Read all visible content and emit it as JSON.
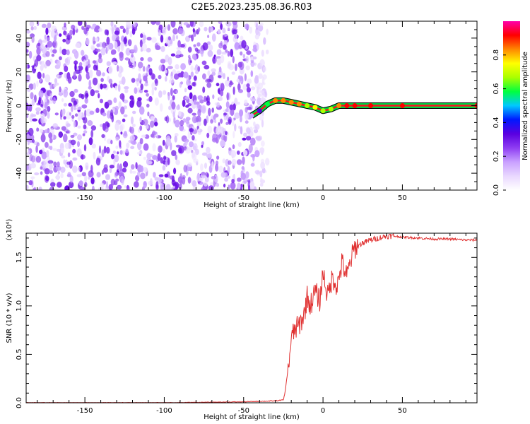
{
  "title": "C2E5.2023.235.08.36.R03",
  "colors": {
    "snr_line": "#e03030",
    "colormap": [
      "#ffffff",
      "#e9d8ff",
      "#c9a0ff",
      "#8e3df2",
      "#5a00e0",
      "#0018ff",
      "#00c8ff",
      "#00ff40",
      "#aaff00",
      "#ffff00",
      "#ff8800",
      "#ff0000",
      "#ff00aa"
    ]
  },
  "chart_data": [
    {
      "type": "heatmap",
      "title": "C2E5.2023.235.08.36.R03",
      "xlabel": "Height of straight line (km)",
      "ylabel": "Frequency (Hz)",
      "xlim": [
        -187,
        97
      ],
      "ylim": [
        -50,
        50
      ],
      "x_ticks": [
        -150,
        -100,
        -50,
        0,
        50
      ],
      "y_ticks": [
        -40,
        -20,
        0,
        20,
        40
      ],
      "colorbar": {
        "label": "Normalized spectral amplitude",
        "range": [
          0,
          1
        ],
        "ticks": [
          "0.0",
          "0.2",
          "0.4",
          "0.6",
          "0.8"
        ]
      },
      "noise_region_x": [
        -187,
        -35
      ],
      "signal_track": {
        "x": [
          -45,
          -40,
          -35,
          -30,
          -25,
          -20,
          -15,
          -10,
          -5,
          0,
          5,
          10,
          15,
          20,
          30,
          50,
          97
        ],
        "frequency": [
          -6,
          -3,
          1,
          3,
          3,
          2,
          1,
          0,
          -1,
          -3,
          -2,
          0,
          0,
          0,
          0,
          0,
          0
        ],
        "amplitude": [
          0.15,
          0.3,
          0.55,
          0.8,
          0.85,
          0.85,
          0.8,
          0.7,
          0.75,
          0.7,
          0.7,
          0.8,
          0.9,
          0.95,
          0.95,
          0.95,
          0.95
        ]
      }
    },
    {
      "type": "line",
      "title": "",
      "xlabel": "Height of straight line (km)",
      "ylabel": "SNR (10 * v/v)",
      "y_multiplier": "(x10⁴)",
      "xlim": [
        -187,
        97
      ],
      "ylim": [
        0,
        1.75
      ],
      "x_ticks": [
        -150,
        -100,
        -50,
        0,
        50
      ],
      "y_ticks": [
        "0.0",
        "0.5",
        "1.0",
        "1.5"
      ],
      "series": [
        {
          "x": [
            -187,
            -150,
            -100,
            -50,
            -30,
            -25,
            -24,
            -22,
            -20,
            -18,
            -15,
            -12,
            -10,
            -8,
            -5,
            -2,
            0,
            3,
            6,
            9,
            12,
            15,
            18,
            20,
            25,
            30,
            35,
            40,
            45,
            50,
            60,
            70,
            80,
            90,
            97
          ],
          "y": [
            0.0,
            0.0,
            0.0,
            0.01,
            0.02,
            0.03,
            0.1,
            0.35,
            0.65,
            0.75,
            0.8,
            0.9,
            1.1,
            1.0,
            1.15,
            1.05,
            1.35,
            1.1,
            1.3,
            1.2,
            1.45,
            1.3,
            1.5,
            1.6,
            1.65,
            1.68,
            1.7,
            1.72,
            1.72,
            1.71,
            1.7,
            1.69,
            1.69,
            1.68,
            1.68
          ]
        }
      ]
    }
  ]
}
